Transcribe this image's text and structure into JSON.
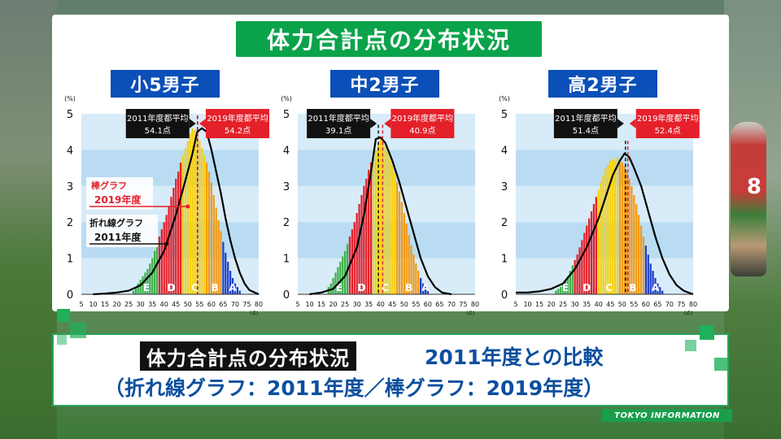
{
  "main_title": "体力合計点の分布状況",
  "bottom": {
    "tag": "体力合計点の分布状況",
    "compare": "2011年度との比較",
    "line2": "（折れ線グラフ：2011年度／棒グラフ：2019年度）"
  },
  "brand": "TOKYO INFORMATION",
  "runner_number": "8",
  "colors": {
    "title_green": "#0aa34a",
    "panel_blue": "#0b4fb8",
    "grade_E": "#3fb04a",
    "grade_D": "#e4202a",
    "grade_C": "#f5d10e",
    "grade_B": "#f29a16",
    "grade_A": "#1f3fcc",
    "avg2011": "#111111",
    "avg2019": "#e4202a"
  },
  "chart_data": [
    {
      "type": "bar",
      "title": "小5男子",
      "y_unit": "(%)",
      "x_unit": "(点)",
      "ylim": [
        0,
        5
      ],
      "yticks": [
        0,
        1,
        2,
        3,
        4,
        5
      ],
      "xticks": [
        5,
        10,
        15,
        20,
        25,
        30,
        35,
        40,
        45,
        50,
        55,
        60,
        65,
        70,
        75,
        80
      ],
      "grade_bands": [
        {
          "grade": "E",
          "from": 0,
          "to": 38
        },
        {
          "grade": "D",
          "from": 38,
          "to": 48
        },
        {
          "grade": "C",
          "from": 48,
          "to": 58
        },
        {
          "grade": "B",
          "from": 58,
          "to": 65
        },
        {
          "grade": "A",
          "from": 65,
          "to": 80
        }
      ],
      "bars_2019": {
        "x_start": 27,
        "values": [
          0.1,
          0.2,
          0.3,
          0.4,
          0.5,
          0.6,
          0.7,
          0.85,
          1.0,
          1.2,
          1.4,
          1.6,
          1.8,
          2.0,
          2.2,
          2.45,
          2.7,
          2.95,
          3.2,
          3.4,
          3.65,
          3.85,
          4.05,
          4.25,
          4.45,
          4.6,
          4.55,
          4.4,
          4.25,
          4.05,
          3.85,
          3.65,
          3.4,
          3.1,
          2.75,
          2.4,
          2.05,
          1.75,
          1.45,
          1.15,
          0.9,
          0.65,
          0.45,
          0.3,
          0.2,
          0.1
        ]
      },
      "line_2011": [
        [
          10,
          0
        ],
        [
          15,
          0.02
        ],
        [
          20,
          0.05
        ],
        [
          25,
          0.1
        ],
        [
          30,
          0.25
        ],
        [
          35,
          0.6
        ],
        [
          40,
          1.2
        ],
        [
          45,
          2.2
        ],
        [
          50,
          3.4
        ],
        [
          52,
          3.9
        ],
        [
          54,
          4.5
        ],
        [
          56,
          4.6
        ],
        [
          58,
          4.5
        ],
        [
          60,
          4.0
        ],
        [
          62,
          3.4
        ],
        [
          64,
          2.8
        ],
        [
          66,
          2.1
        ],
        [
          68,
          1.5
        ],
        [
          70,
          1.0
        ],
        [
          72,
          0.6
        ],
        [
          74,
          0.3
        ],
        [
          76,
          0.12
        ],
        [
          80,
          0
        ]
      ],
      "avg_2011": {
        "label": "2011年度都平均",
        "value_label": "54.1点",
        "value": 54.1
      },
      "avg_2019": {
        "label": "2019年度都平均",
        "value_label": "54.2点",
        "value": 54.2
      },
      "annotations": [
        {
          "label1": "棒グラフ",
          "label2": "2019年度"
        },
        {
          "label1": "折れ線グラフ",
          "label2": "2011年度"
        }
      ]
    },
    {
      "type": "bar",
      "title": "中2男子",
      "y_unit": "(%)",
      "x_unit": "(点)",
      "ylim": [
        0,
        5
      ],
      "yticks": [
        0,
        1,
        2,
        3,
        4,
        5
      ],
      "xticks": [
        5,
        10,
        15,
        20,
        25,
        30,
        35,
        40,
        45,
        50,
        55,
        60,
        65,
        70,
        75,
        80
      ],
      "grade_bands": [
        {
          "grade": "E",
          "from": 0,
          "to": 27
        },
        {
          "grade": "D",
          "from": 27,
          "to": 37
        },
        {
          "grade": "C",
          "from": 37,
          "to": 47
        },
        {
          "grade": "B",
          "from": 47,
          "to": 57
        },
        {
          "grade": "A",
          "from": 57,
          "to": 80
        }
      ],
      "bars_2019": {
        "x_start": 18,
        "values": [
          0.2,
          0.3,
          0.45,
          0.6,
          0.75,
          0.9,
          1.05,
          1.2,
          1.4,
          1.6,
          1.8,
          2.0,
          2.25,
          2.5,
          2.75,
          3.0,
          3.2,
          3.45,
          3.65,
          3.85,
          4.0,
          4.2,
          4.3,
          4.25,
          4.1,
          3.95,
          3.75,
          3.55,
          3.35,
          3.1,
          2.85,
          2.55,
          2.25,
          1.95,
          1.65,
          1.35,
          1.1,
          0.85,
          0.65,
          0.45,
          0.3,
          0.2,
          0.1
        ]
      },
      "line_2011": [
        [
          10,
          0
        ],
        [
          15,
          0.05
        ],
        [
          20,
          0.15
        ],
        [
          25,
          0.5
        ],
        [
          30,
          1.3
        ],
        [
          33,
          2.2
        ],
        [
          36,
          3.4
        ],
        [
          38,
          4.3
        ],
        [
          40,
          4.35
        ],
        [
          42,
          4.2
        ],
        [
          45,
          3.7
        ],
        [
          48,
          3.1
        ],
        [
          51,
          2.4
        ],
        [
          54,
          1.7
        ],
        [
          57,
          1.0
        ],
        [
          60,
          0.5
        ],
        [
          63,
          0.2
        ],
        [
          66,
          0.05
        ],
        [
          70,
          0
        ]
      ],
      "avg_2011": {
        "label": "2011年度都平均",
        "value_label": "39.1点",
        "value": 39.1
      },
      "avg_2019": {
        "label": "2019年度都平均",
        "value_label": "40.9点",
        "value": 40.9
      }
    },
    {
      "type": "bar",
      "title": "高2男子",
      "y_unit": "(%)",
      "x_unit": "(点)",
      "ylim": [
        0,
        5
      ],
      "yticks": [
        0,
        1,
        2,
        3,
        4,
        5
      ],
      "xticks": [
        5,
        10,
        15,
        20,
        25,
        30,
        35,
        40,
        45,
        50,
        55,
        60,
        65,
        70,
        75,
        80
      ],
      "grade_bands": [
        {
          "grade": "E",
          "from": 0,
          "to": 30
        },
        {
          "grade": "D",
          "from": 30,
          "to": 40
        },
        {
          "grade": "C",
          "from": 40,
          "to": 49
        },
        {
          "grade": "B",
          "from": 49,
          "to": 60
        },
        {
          "grade": "A",
          "from": 60,
          "to": 80
        }
      ],
      "bars_2019": {
        "x_start": 22,
        "values": [
          0.1,
          0.15,
          0.2,
          0.3,
          0.4,
          0.5,
          0.65,
          0.8,
          0.95,
          1.1,
          1.3,
          1.5,
          1.7,
          1.9,
          2.1,
          2.3,
          2.5,
          2.7,
          2.9,
          3.1,
          3.3,
          3.5,
          3.6,
          3.7,
          3.75,
          3.7,
          3.8,
          3.7,
          3.65,
          3.55,
          3.4,
          3.2,
          3.0,
          2.75,
          2.5,
          2.2,
          1.9,
          1.6,
          1.35,
          1.1,
          0.85,
          0.65,
          0.45,
          0.3,
          0.2,
          0.1
        ]
      },
      "line_2011": [
        [
          5,
          0.05
        ],
        [
          10,
          0.05
        ],
        [
          15,
          0.08
        ],
        [
          20,
          0.15
        ],
        [
          25,
          0.3
        ],
        [
          30,
          0.7
        ],
        [
          35,
          1.3
        ],
        [
          40,
          2.1
        ],
        [
          43,
          2.7
        ],
        [
          46,
          3.3
        ],
        [
          49,
          3.7
        ],
        [
          51,
          3.9
        ],
        [
          53,
          3.8
        ],
        [
          55,
          3.5
        ],
        [
          58,
          3.0
        ],
        [
          61,
          2.3
        ],
        [
          64,
          1.6
        ],
        [
          67,
          1.0
        ],
        [
          70,
          0.55
        ],
        [
          73,
          0.25
        ],
        [
          76,
          0.1
        ],
        [
          80,
          0
        ]
      ],
      "avg_2011": {
        "label": "2011年度都平均",
        "value_label": "51.4点",
        "value": 51.4
      },
      "avg_2019": {
        "label": "2019年度都平均",
        "value_label": "52.4点",
        "value": 52.4
      }
    }
  ]
}
